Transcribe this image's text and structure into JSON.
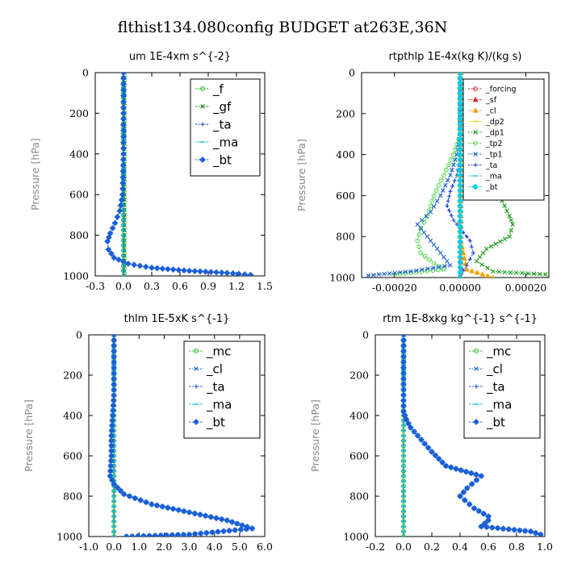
{
  "figure_title": "flthist134.080config  BUDGET at263E,36N",
  "colors": {
    "green": "#22bb22",
    "blue": "#1a3fd6",
    "darkblue": "#0000aa",
    "cyan": "#00b8d8",
    "red": "#e02020",
    "orange": "#f2a000",
    "yellow": "#e8d000",
    "lightgreen": "#55dd55",
    "steel": "#2266cc"
  },
  "chart_data": [
    {
      "type": "line",
      "title": "um  1E-4xm s^{-2}",
      "ylabel": "Pressure [hPa]",
      "xlim": [
        -0.3,
        1.5
      ],
      "ylim": [
        0,
        1000
      ],
      "x_ticks": [
        "-0.3",
        "0.0",
        "0.3",
        "0.6",
        "0.9",
        "1.2",
        "1.5"
      ],
      "x_tick_values": [
        -0.3,
        0.0,
        0.3,
        0.6,
        0.9,
        1.2,
        1.5
      ],
      "y_ticks": [
        "0",
        "200",
        "400",
        "600",
        "800",
        "1000"
      ],
      "y_tick_values": [
        0,
        200,
        400,
        600,
        800,
        1000
      ],
      "legend_position": "top-right",
      "series": [
        {
          "name": "_f",
          "color": "#22bb22",
          "marker": "circle",
          "x": [
            0,
            0,
            0,
            0,
            0,
            0,
            0,
            0,
            0,
            0,
            0
          ],
          "y": [
            0,
            100,
            200,
            300,
            400,
            500,
            600,
            700,
            800,
            900,
            1000
          ]
        },
        {
          "name": "_gf",
          "color": "#1a8a1a",
          "marker": "x",
          "x": [
            0.01,
            0.01,
            0.01,
            0.01,
            0.01,
            0.01,
            0.01,
            0.01,
            0.01,
            0.01,
            0.01
          ],
          "y": [
            0,
            100,
            200,
            300,
            400,
            500,
            600,
            700,
            800,
            900,
            1000
          ]
        },
        {
          "name": "_ta",
          "color": "#1a3fd6",
          "marker": "plus",
          "x": [
            0,
            0,
            0,
            0,
            0,
            0,
            0,
            0,
            0,
            0,
            0
          ],
          "y": [
            0,
            100,
            200,
            300,
            400,
            500,
            600,
            700,
            800,
            900,
            1000
          ]
        },
        {
          "name": "_ma",
          "color": "#00b8d8",
          "marker": "dash",
          "x": [
            0,
            0,
            0,
            0,
            0,
            0,
            0,
            0,
            0,
            0,
            0
          ],
          "y": [
            0,
            100,
            200,
            300,
            400,
            500,
            600,
            700,
            800,
            900,
            1000
          ]
        },
        {
          "name": "_bt",
          "color": "#1a5fd6",
          "marker": "diamond",
          "x": [
            0,
            0,
            0,
            -0.01,
            -0.04,
            -0.09,
            -0.14,
            -0.17,
            -0.16,
            -0.1,
            0.05,
            0.3,
            0.7,
            1.1,
            1.35
          ],
          "y": [
            0,
            200,
            400,
            600,
            680,
            740,
            790,
            830,
            870,
            910,
            940,
            960,
            975,
            985,
            995
          ]
        }
      ]
    },
    {
      "type": "line",
      "title": "rtpthlp  1E-4x(kg K)/(kg s)",
      "ylabel": "Pressure [hPa]",
      "xlim": [
        -0.0003,
        0.00027
      ],
      "ylim": [
        0,
        1000
      ],
      "x_ticks": [
        "-0.00020",
        "0.00000",
        "0.00020"
      ],
      "x_tick_values": [
        -0.0002,
        0.0,
        0.0002
      ],
      "y_ticks": [
        "0",
        "200",
        "400",
        "600",
        "800",
        "1000"
      ],
      "y_tick_values": [
        0,
        200,
        400,
        600,
        800,
        1000
      ],
      "legend_position": "top-right",
      "series": [
        {
          "name": "_forcing",
          "color": "#e02020",
          "marker": "circle",
          "x": [
            0,
            0,
            0,
            0,
            0,
            0,
            0,
            0,
            0,
            0,
            0
          ],
          "y": [
            0,
            100,
            200,
            300,
            400,
            500,
            600,
            700,
            800,
            900,
            1000
          ]
        },
        {
          "name": "_sf",
          "color": "#e02020",
          "marker": "tri",
          "x": [
            2e-06,
            2e-06,
            2e-06,
            2e-06,
            2e-06,
            2e-06,
            2e-06,
            2e-06,
            2e-06,
            2e-06,
            2e-06
          ],
          "y": [
            0,
            100,
            200,
            300,
            400,
            500,
            600,
            700,
            800,
            900,
            1000
          ]
        },
        {
          "name": "_cl",
          "color": "#f2a000",
          "marker": "tri",
          "x": [
            0,
            0,
            0,
            0,
            0,
            0,
            0,
            0,
            0,
            2e-05,
            0.0001
          ],
          "y": [
            0,
            100,
            200,
            300,
            400,
            500,
            600,
            700,
            800,
            960,
            1000
          ]
        },
        {
          "name": "_dp2",
          "color": "#e8d000",
          "marker": "dash",
          "x": [
            0,
            0,
            0,
            0,
            0,
            0,
            0,
            0,
            0,
            0,
            0
          ],
          "y": [
            0,
            100,
            200,
            300,
            400,
            500,
            600,
            700,
            800,
            900,
            1000
          ]
        },
        {
          "name": "_dp1",
          "color": "#1f9f1f",
          "marker": "x",
          "x": [
            0,
            0,
            3e-05,
            8e-05,
            0.00012,
            0.00015,
            0.00016,
            0.00015,
            8e-05,
            5e-05,
            0.0001,
            0.00026
          ],
          "y": [
            0,
            300,
            400,
            500,
            600,
            700,
            740,
            800,
            860,
            920,
            970,
            985
          ]
        },
        {
          "name": "_tp2",
          "color": "#55dd55",
          "marker": "circle",
          "x": [
            0,
            0,
            -2e-05,
            -5e-05,
            -8e-05,
            -0.0001,
            -0.00012,
            -0.00013,
            -0.00012,
            -8e-05,
            -5e-05,
            -0.0002
          ],
          "y": [
            0,
            300,
            400,
            500,
            600,
            700,
            760,
            820,
            880,
            930,
            960,
            985
          ]
        },
        {
          "name": "_tp1",
          "color": "#2266cc",
          "marker": "x",
          "x": [
            0,
            0,
            -1e-05,
            -3e-05,
            -6e-05,
            -9e-05,
            -0.00013,
            -0.0001,
            -6e-05,
            -3e-05,
            -0.00015,
            -0.00028
          ],
          "y": [
            0,
            300,
            400,
            500,
            600,
            680,
            740,
            800,
            880,
            940,
            970,
            990
          ]
        },
        {
          "name": "_ta",
          "color": "#1a3fd6",
          "marker": "plus",
          "x": [
            0,
            0,
            -1e-05,
            -3e-05,
            -4e-05,
            -2e-05,
            1e-05,
            3e-05,
            4e-05,
            2e-05,
            0
          ],
          "y": [
            0,
            400,
            500,
            580,
            650,
            720,
            780,
            820,
            880,
            940,
            990
          ]
        },
        {
          "name": "_ma",
          "color": "#00b8d8",
          "marker": "dash",
          "x": [
            0,
            0,
            0,
            0,
            0,
            0,
            0,
            0,
            0,
            0,
            0
          ],
          "y": [
            0,
            100,
            200,
            300,
            400,
            500,
            600,
            700,
            800,
            900,
            1000
          ]
        },
        {
          "name": "_bt",
          "color": "#00d0e0",
          "marker": "diamond",
          "x": [
            0,
            0,
            0,
            0,
            0,
            0,
            0,
            0,
            0,
            0,
            0
          ],
          "y": [
            0,
            100,
            200,
            300,
            400,
            500,
            600,
            700,
            800,
            900,
            1000
          ]
        }
      ]
    },
    {
      "type": "line",
      "title": "thlm  1E-5xK s^{-1}",
      "ylabel": "Pressure [hPa]",
      "xlim": [
        -1.0,
        6.0
      ],
      "ylim": [
        0,
        1000
      ],
      "x_ticks": [
        "-1.0",
        "0.0",
        "1.0",
        "2.0",
        "3.0",
        "4.0",
        "5.0",
        "6.0"
      ],
      "x_tick_values": [
        -1,
        0,
        1,
        2,
        3,
        4,
        5,
        6
      ],
      "y_ticks": [
        "0",
        "200",
        "400",
        "600",
        "800",
        "1000"
      ],
      "y_tick_values": [
        0,
        200,
        400,
        600,
        800,
        1000
      ],
      "legend_position": "top-right",
      "series": [
        {
          "name": "_mc",
          "color": "#22bb22",
          "marker": "circle",
          "x": [
            0,
            0,
            0,
            0,
            0,
            0,
            0,
            0,
            0,
            0,
            0
          ],
          "y": [
            0,
            100,
            200,
            300,
            400,
            500,
            600,
            700,
            800,
            900,
            1000
          ]
        },
        {
          "name": "_cl",
          "color": "#2266cc",
          "marker": "x",
          "x": [
            0,
            0,
            -0.05,
            -0.1,
            -0.1,
            -0.15,
            0,
            0.4,
            1.5,
            3.0,
            4.5,
            5.5,
            3.0,
            0.5
          ],
          "y": [
            0,
            300,
            400,
            500,
            600,
            700,
            740,
            790,
            840,
            880,
            920,
            960,
            990,
            1000
          ]
        },
        {
          "name": "_ta",
          "color": "#1a3fd6",
          "marker": "plus",
          "x": [
            0,
            0,
            0,
            0,
            0,
            0,
            0,
            0,
            0,
            0,
            0
          ],
          "y": [
            0,
            100,
            200,
            300,
            400,
            500,
            600,
            700,
            800,
            900,
            1000
          ]
        },
        {
          "name": "_ma",
          "color": "#00b8d8",
          "marker": "dash",
          "x": [
            0,
            0,
            0,
            0,
            0,
            0,
            0,
            0,
            0,
            0,
            0
          ],
          "y": [
            0,
            100,
            200,
            300,
            400,
            500,
            600,
            700,
            800,
            900,
            1000
          ]
        },
        {
          "name": "_bt",
          "color": "#1a5fd6",
          "marker": "diamond",
          "x": [
            0,
            0,
            -0.05,
            -0.1,
            -0.1,
            -0.15,
            0,
            0.4,
            1.5,
            3.0,
            4.5,
            5.5,
            3.0,
            0.5
          ],
          "y": [
            0,
            300,
            400,
            500,
            600,
            700,
            740,
            790,
            840,
            880,
            920,
            960,
            990,
            1000
          ]
        }
      ]
    },
    {
      "type": "line",
      "title": "rtm  1E-8xkg kg^{-1} s^{-1}",
      "ylabel": "Pressure [hPa]",
      "xlim": [
        -0.2,
        1.0
      ],
      "ylim": [
        0,
        1000
      ],
      "x_ticks": [
        "-0.2",
        "0.0",
        "0.2",
        "0.4",
        "0.6",
        "0.8",
        "1.0"
      ],
      "x_tick_values": [
        -0.2,
        0.0,
        0.2,
        0.4,
        0.6,
        0.8,
        1.0
      ],
      "y_ticks": [
        "0",
        "200",
        "400",
        "600",
        "800",
        "1000"
      ],
      "y_tick_values": [
        0,
        200,
        400,
        600,
        800,
        1000
      ],
      "legend_position": "top-right",
      "series": [
        {
          "name": "_mc",
          "color": "#22bb22",
          "marker": "circle",
          "x": [
            0,
            0,
            0,
            0,
            0,
            0,
            0,
            0,
            0,
            0,
            0
          ],
          "y": [
            0,
            100,
            200,
            300,
            400,
            500,
            600,
            700,
            800,
            900,
            1000
          ]
        },
        {
          "name": "_cl",
          "color": "#2266cc",
          "marker": "x",
          "x": [
            0,
            0,
            0.02,
            0.05,
            0.1,
            0.15,
            0.2,
            0.3,
            0.55,
            0.45,
            0.4,
            0.5,
            0.6,
            0.6,
            0.55,
            0.9,
            0.97
          ],
          "y": [
            0,
            380,
            420,
            460,
            500,
            540,
            580,
            650,
            700,
            760,
            800,
            860,
            900,
            920,
            950,
            975,
            990
          ]
        },
        {
          "name": "_ta",
          "color": "#1a3fd6",
          "marker": "plus",
          "x": [
            0,
            0,
            0,
            0,
            0,
            0,
            0,
            0,
            0,
            0,
            0
          ],
          "y": [
            0,
            100,
            200,
            300,
            400,
            500,
            600,
            700,
            800,
            900,
            1000
          ]
        },
        {
          "name": "_ma",
          "color": "#00b8d8",
          "marker": "dash",
          "x": [
            0,
            0,
            0,
            0,
            0,
            0,
            0,
            0,
            0,
            0,
            0
          ],
          "y": [
            0,
            100,
            200,
            300,
            400,
            500,
            600,
            700,
            800,
            900,
            1000
          ]
        },
        {
          "name": "_bt",
          "color": "#1a5fd6",
          "marker": "diamond",
          "x": [
            0,
            0,
            0.02,
            0.05,
            0.1,
            0.15,
            0.2,
            0.3,
            0.55,
            0.45,
            0.4,
            0.5,
            0.6,
            0.6,
            0.55,
            0.9,
            0.97
          ],
          "y": [
            0,
            380,
            420,
            460,
            500,
            540,
            580,
            650,
            700,
            760,
            800,
            860,
            900,
            920,
            950,
            975,
            990
          ]
        }
      ]
    }
  ]
}
